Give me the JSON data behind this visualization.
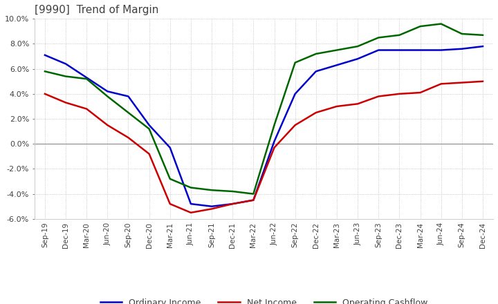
{
  "title": "[9990]  Trend of Margin",
  "title_color": "#404040",
  "ylim": [
    -6.0,
    10.0
  ],
  "yticks": [
    -6.0,
    -4.0,
    -2.0,
    0.0,
    2.0,
    4.0,
    6.0,
    8.0,
    10.0
  ],
  "background_color": "#ffffff",
  "grid_color": "#bbbbbb",
  "x_labels": [
    "Sep-19",
    "Dec-19",
    "Mar-20",
    "Jun-20",
    "Sep-20",
    "Dec-20",
    "Mar-21",
    "Jun-21",
    "Sep-21",
    "Dec-21",
    "Mar-22",
    "Jun-22",
    "Sep-22",
    "Dec-22",
    "Mar-23",
    "Jun-23",
    "Sep-23",
    "Dec-23",
    "Mar-24",
    "Jun-24",
    "Sep-24",
    "Dec-24"
  ],
  "ordinary_income": [
    7.1,
    6.4,
    5.3,
    4.2,
    3.8,
    1.5,
    -0.3,
    -4.8,
    -5.0,
    -4.8,
    -4.5,
    0.2,
    4.0,
    5.8,
    6.3,
    6.8,
    7.5,
    7.5,
    7.5,
    7.5,
    7.6,
    7.8
  ],
  "net_income": [
    4.0,
    3.3,
    2.8,
    1.5,
    0.5,
    -0.8,
    -4.8,
    -5.5,
    -5.2,
    -4.8,
    -4.5,
    -0.3,
    1.5,
    2.5,
    3.0,
    3.2,
    3.8,
    4.0,
    4.1,
    4.8,
    4.9,
    5.0
  ],
  "operating_cashflow": [
    5.8,
    5.4,
    5.2,
    3.8,
    2.5,
    1.2,
    -2.8,
    -3.5,
    -3.7,
    -3.8,
    -4.0,
    1.5,
    6.5,
    7.2,
    7.5,
    7.8,
    8.5,
    8.7,
    9.4,
    9.6,
    8.8,
    8.7
  ],
  "line_colors": {
    "ordinary_income": "#0000cc",
    "net_income": "#cc0000",
    "operating_cashflow": "#006600"
  },
  "legend_labels": [
    "Ordinary Income",
    "Net Income",
    "Operating Cashflow"
  ]
}
